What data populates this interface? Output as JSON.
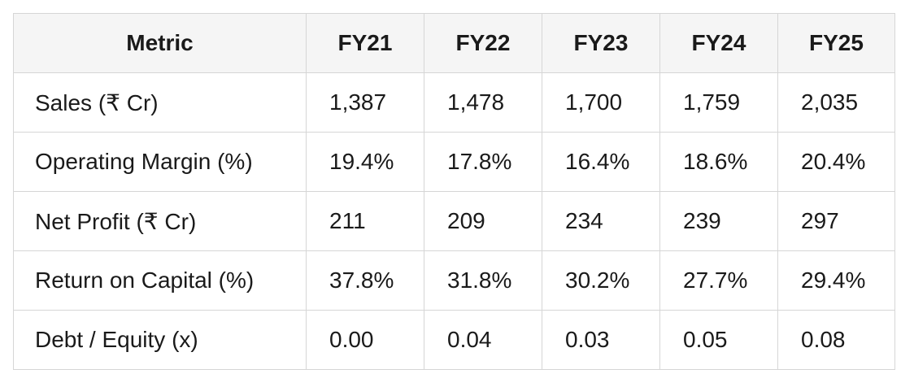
{
  "table": {
    "headers": [
      "Metric",
      "FY21",
      "FY22",
      "FY23",
      "FY24",
      "FY25"
    ],
    "rows": [
      {
        "metric": "Sales (₹ Cr)",
        "values": [
          "1,387",
          "1,478",
          "1,700",
          "1,759",
          "2,035"
        ]
      },
      {
        "metric": "Operating Margin (%)",
        "values": [
          "19.4%",
          "17.8%",
          "16.4%",
          "18.6%",
          "20.4%"
        ]
      },
      {
        "metric": "Net Profit (₹ Cr)",
        "values": [
          "211",
          "209",
          "234",
          "239",
          "297"
        ]
      },
      {
        "metric": "Return on Capital (%)",
        "values": [
          "37.8%",
          "31.8%",
          "30.2%",
          "27.7%",
          "29.4%"
        ]
      },
      {
        "metric": "Debt / Equity (x)",
        "values": [
          "0.00",
          "0.04",
          "0.03",
          "0.05",
          "0.08"
        ]
      }
    ]
  }
}
